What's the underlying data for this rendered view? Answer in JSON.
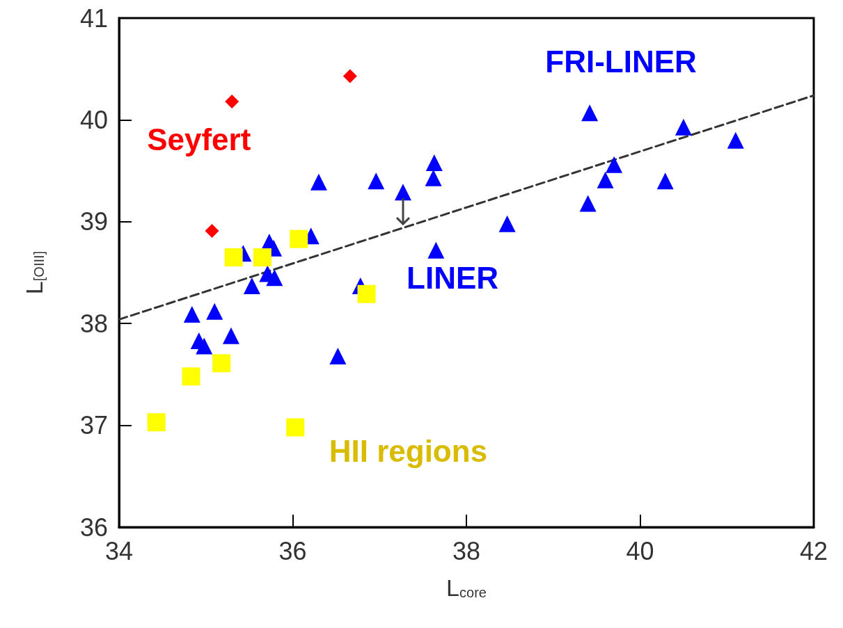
{
  "chart_data": {
    "type": "scatter",
    "xlabel": "L$_{core}$",
    "ylabel": "L$_{[OIII]}$",
    "xlim": [
      34,
      42
    ],
    "ylim": [
      36,
      41
    ],
    "xticks": [
      34,
      36,
      38,
      40,
      42
    ],
    "yticks": [
      36,
      37,
      38,
      39,
      40,
      41
    ],
    "grid": false,
    "series": [
      {
        "name": "Seyfert",
        "color": "#ff0000",
        "marker": "diamond",
        "x": [
          35.3,
          36.66,
          35.07
        ],
        "values": [
          40.18,
          40.43,
          38.91
        ]
      },
      {
        "name": "LINER",
        "color": "#0000ff",
        "marker": "triangle",
        "x": [
          34.84,
          35.1,
          34.92,
          34.98,
          35.29,
          35.43,
          35.53,
          35.73,
          35.78,
          35.71,
          35.79,
          36.21,
          36.3,
          36.52,
          36.78,
          36.96,
          37.27,
          37.63,
          37.62,
          37.65,
          39.6
        ],
        "values": [
          38.09,
          38.12,
          37.83,
          37.78,
          37.88,
          38.69,
          38.37,
          38.8,
          38.74,
          38.49,
          38.45,
          38.86,
          39.39,
          37.68,
          38.37,
          39.4,
          39.29,
          39.58,
          39.43,
          38.72,
          39.41
        ]
      },
      {
        "name": "HII regions",
        "color": "#ffff00",
        "marker": "square",
        "x": [
          34.43,
          34.83,
          35.18,
          35.32,
          35.65,
          36.07,
          36.03,
          36.85
        ],
        "values": [
          37.03,
          37.48,
          37.61,
          38.65,
          38.65,
          38.83,
          36.98,
          38.29
        ]
      },
      {
        "name": "FRI-LINER",
        "color": "#0000ff",
        "marker": "triangle",
        "x": [
          38.47,
          39.42,
          39.4,
          40.5,
          41.1,
          40.29,
          39.7
        ],
        "values": [
          38.98,
          40.07,
          39.18,
          39.93,
          39.8,
          39.4,
          39.56
        ]
      },
      {
        "type": "line",
        "color": "#333333",
        "line_style": "dashed",
        "marker": "none",
        "x": [
          34,
          42
        ],
        "values": [
          38.04,
          40.24
        ]
      }
    ]
  }
}
